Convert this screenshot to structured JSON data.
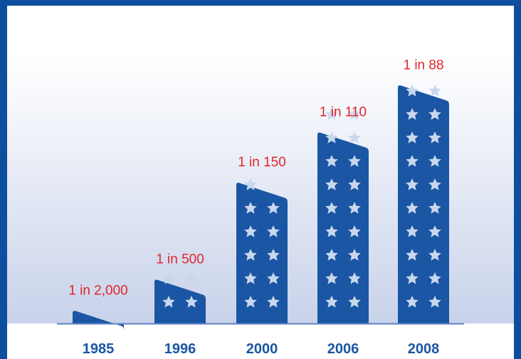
{
  "chart_data": {
    "type": "bar",
    "categories": [
      "1985",
      "1996",
      "2000",
      "2006",
      "2008"
    ],
    "rate_labels": [
      "1 in 2,000",
      "1 in 500",
      "1 in 150",
      "1 in 110",
      "1 in 88"
    ],
    "values": [
      0.05,
      0.2,
      0.667,
      0.909,
      1.136
    ],
    "value_unit": "prevalence per 100 (1 in N)",
    "star_counts": [
      1,
      4,
      11,
      18,
      20
    ],
    "title": "",
    "xlabel": "",
    "ylabel": "",
    "ylim": [
      0,
      1.25
    ],
    "grid": false,
    "legend": "none"
  },
  "colors": {
    "frame": "#0d4f9e",
    "bar": "#1a56a3",
    "star": "#c9d7ee",
    "rate_label": "#e0262b",
    "year_label": "#1a56a3",
    "baseline": "#5d83c2",
    "background_top": "#ffffff",
    "background_bottom": "#c8d2ea"
  },
  "icons": {
    "bar_marker": "star-person-icon"
  }
}
